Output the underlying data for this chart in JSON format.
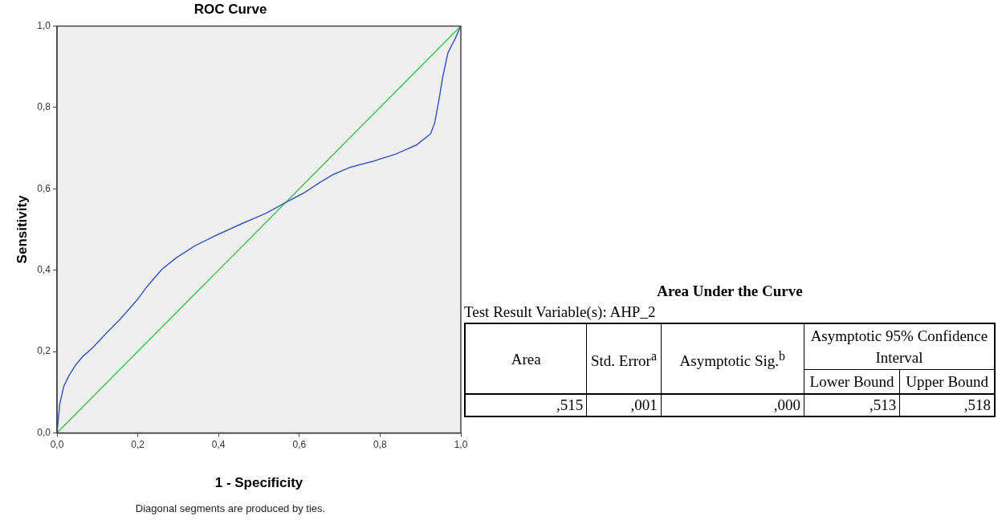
{
  "chart_data": [
    {
      "type": "line",
      "title": "ROC Curve",
      "xlabel": "1 - Specificity",
      "ylabel": "Sensitivity",
      "annotations": [
        "Diagonal segments are produced by ties."
      ],
      "xlim": [
        0,
        1
      ],
      "ylim": [
        0,
        1
      ],
      "xticks": [
        {
          "value": 0,
          "label": "0,0"
        },
        {
          "value": 0.2,
          "label": "0,2"
        },
        {
          "value": 0.4,
          "label": "0,4"
        },
        {
          "value": 0.6,
          "label": "0,6"
        },
        {
          "value": 0.8,
          "label": "0,8"
        },
        {
          "value": 1,
          "label": "1,0"
        }
      ],
      "yticks": [
        {
          "value": 0,
          "label": "0,0"
        },
        {
          "value": 0.2,
          "label": "0,2"
        },
        {
          "value": 0.4,
          "label": "0,4"
        },
        {
          "value": 0.6,
          "label": "0,6"
        },
        {
          "value": 0.8,
          "label": "0,8"
        },
        {
          "value": 1,
          "label": "1,0"
        }
      ],
      "grid": false,
      "legend": false,
      "marker": "none",
      "series": [
        {
          "color": "#3c5bbd",
          "x": [
            0,
            0.007,
            0.017,
            0.03,
            0.047,
            0.064,
            0.087,
            0.121,
            0.154,
            0.181,
            0.201,
            0.221,
            0.238,
            0.261,
            0.295,
            0.342,
            0.395,
            0.462,
            0.516,
            0.566,
            0.61,
            0.65,
            0.684,
            0.724,
            0.784,
            0.838,
            0.891,
            0.925,
            0.935,
            0.945,
            0.955,
            0.968,
            0.985,
            1
          ],
          "values": [
            0,
            0.072,
            0.115,
            0.141,
            0.168,
            0.188,
            0.208,
            0.244,
            0.277,
            0.307,
            0.33,
            0.357,
            0.377,
            0.403,
            0.43,
            0.46,
            0.486,
            0.516,
            0.539,
            0.566,
            0.589,
            0.615,
            0.635,
            0.652,
            0.668,
            0.685,
            0.708,
            0.735,
            0.761,
            0.814,
            0.874,
            0.934,
            0.967,
            1
          ]
        },
        {
          "color": "#4cc35a",
          "x": [
            0,
            1
          ],
          "values": [
            0,
            1
          ]
        }
      ]
    },
    {
      "type": "other",
      "title": "Area Under the Curve",
      "annotations": [
        "Test Result Variable(s):   AHP_2",
        "Area",
        "Std. Error$^{a}$",
        "Asymptotic Sig.$^{b}$",
        "Asymptotic 95% Confidence Interval",
        "Lower Bound",
        "Upper Bound",
        ",515",
        ",001",
        ",000",
        ",513",
        ",518"
      ]
    }
  ]
}
